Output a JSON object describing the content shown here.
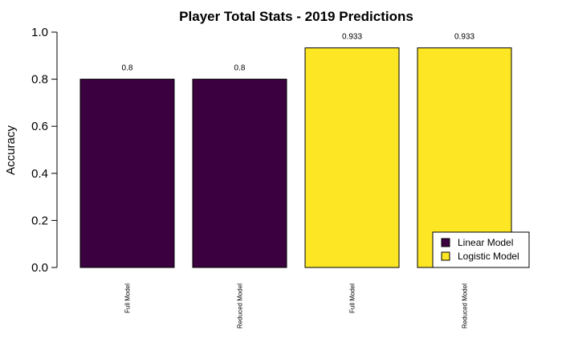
{
  "chart_data": {
    "type": "bar",
    "title": "Player Total Stats - 2019 Predictions",
    "xlabel": "",
    "ylabel": "Accuracy",
    "ylim": [
      0,
      1.0
    ],
    "yticks": [
      "0.0",
      "0.2",
      "0.4",
      "0.6",
      "0.8",
      "1.0"
    ],
    "categories": [
      "Full Model",
      "Reduced Model",
      "Full Model",
      "Reduced Model"
    ],
    "values": [
      0.8,
      0.8,
      0.933,
      0.933
    ],
    "value_labels": [
      "0.8",
      "0.8",
      "0.933",
      "0.933"
    ],
    "bar_series": [
      "Linear Model",
      "Linear Model",
      "Logistic Model",
      "Logistic Model"
    ],
    "series": [
      {
        "name": "Linear Model",
        "color": "#3b0040"
      },
      {
        "name": "Logistic Model",
        "color": "#fde725"
      }
    ],
    "legend_position": "bottom-right",
    "grid": false
  }
}
